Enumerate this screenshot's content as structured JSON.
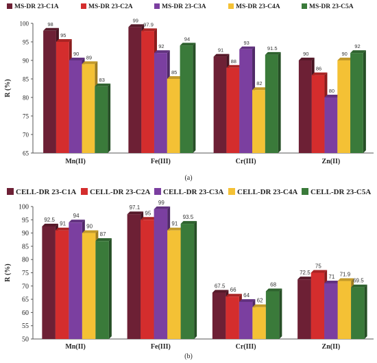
{
  "colors": [
    "#6d2035",
    "#d42d2d",
    "#7b3fa0",
    "#f4c135",
    "#3a7a3a"
  ],
  "chart_data": [
    {
      "type": "bar",
      "panel_label": "(a)",
      "ylabel": "R (%)",
      "ylim": [
        65,
        100
      ],
      "yticks": [
        65,
        70,
        75,
        80,
        85,
        90,
        95,
        100
      ],
      "categories": [
        "Mn(II)",
        "Fe(III)",
        "Cr(III)",
        "Zn(II)"
      ],
      "legend_position": "top",
      "series": [
        {
          "name": "MS-DR 23-C1A",
          "values": [
            98,
            99,
            91,
            90
          ],
          "labels": [
            "98",
            "99",
            "91",
            "90"
          ]
        },
        {
          "name": "MS-DR 23-C2A",
          "values": [
            95,
            97.9,
            88,
            86
          ],
          "labels": [
            "95",
            "97.9",
            "88",
            "86"
          ]
        },
        {
          "name": "MS-DR 23-C3A",
          "values": [
            90,
            92,
            93,
            80
          ],
          "labels": [
            "90",
            "92",
            "93",
            "80"
          ]
        },
        {
          "name": "MS-DR 23-C4A",
          "values": [
            89,
            85,
            82,
            90
          ],
          "labels": [
            "89",
            "85",
            "82",
            "90"
          ]
        },
        {
          "name": "MS-DR 23-C5A",
          "values": [
            83,
            94,
            91.5,
            92
          ],
          "labels": [
            "83",
            "94",
            "91.5",
            "92"
          ]
        }
      ]
    },
    {
      "type": "bar",
      "panel_label": "(b)",
      "ylabel": "R (%)",
      "ylim": [
        50,
        100
      ],
      "yticks": [
        50,
        55,
        60,
        65,
        70,
        75,
        80,
        85,
        90,
        95,
        100
      ],
      "categories": [
        "Mn(II)",
        "Fe(III)",
        "Cr(III)",
        "Zn(II)"
      ],
      "legend_position": "top",
      "series": [
        {
          "name": "CELL-DR 23-C1A",
          "values": [
            92.5,
            97.1,
            67.5,
            72.5
          ],
          "labels": [
            "92.5",
            "97.1",
            "67.5",
            "72.5"
          ]
        },
        {
          "name": "CELL-DR 23-C2A",
          "values": [
            91,
            95,
            66,
            75
          ],
          "labels": [
            "91",
            "95",
            "66",
            "75"
          ]
        },
        {
          "name": "CELL-DR 23-C3A",
          "values": [
            94,
            99,
            64,
            71
          ],
          "labels": [
            "94",
            "99",
            "64",
            "71"
          ]
        },
        {
          "name": "CELL-DR 23-C4A",
          "values": [
            90,
            91,
            62,
            71.9
          ],
          "labels": [
            "90",
            "91",
            "62",
            "71.9"
          ]
        },
        {
          "name": "CELL-DR 23-C5A",
          "values": [
            87,
            93.5,
            68,
            69.5
          ],
          "labels": [
            "87",
            "93.5",
            "68",
            "69.5"
          ]
        }
      ]
    }
  ]
}
